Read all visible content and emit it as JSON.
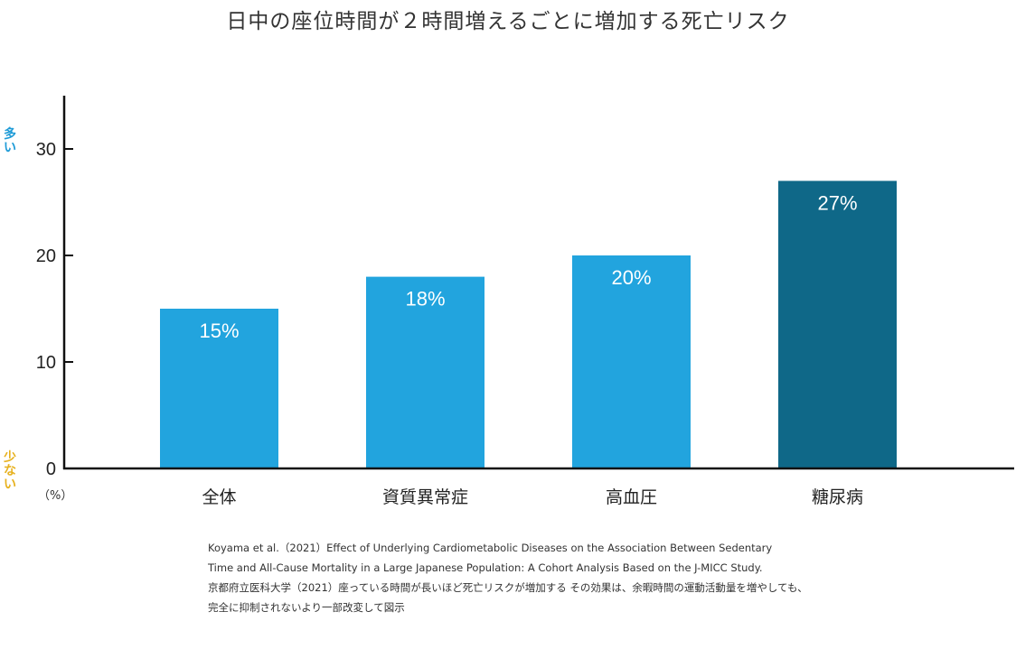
{
  "colors": {
    "bar_primary": "#22a4de",
    "bar_highlight": "#0f6888",
    "axis": "#111111",
    "label_high": "#1e9bd7",
    "label_low": "#e7b11e",
    "bar_label": "#ffffff"
  },
  "axis_labels": {
    "high": "多い",
    "low": "少ない",
    "unit": "（%）"
  },
  "source_lines": [
    "Koyama et al.（2021）Effect of Underlying Cardiometabolic Diseases on the Association Between Sedentary",
    "Time and All-Cause Mortality in a Large Japanese Population: A Cohort Analysis Based on the J-MICC Study.",
    "京都府立医科大学（2021）座っている時間が長いほど死亡リスクが増加する その効果は、余暇時間の運動活動量を増やしても、",
    "完全に抑制されないより一部改変して図示"
  ],
  "chart_data": {
    "type": "bar",
    "title": "日中の座位時間が２時間増えるごとに増加する死亡リスク",
    "categories": [
      "全体",
      "資質異常症",
      "高血圧",
      "糖尿病"
    ],
    "values": [
      15,
      18,
      20,
      27
    ],
    "data_labels": [
      "15%",
      "18%",
      "20%",
      "27%"
    ],
    "highlight_index": 3,
    "ylim": [
      0,
      35
    ],
    "yticks": [
      0,
      10,
      20,
      30
    ],
    "grid": false
  }
}
